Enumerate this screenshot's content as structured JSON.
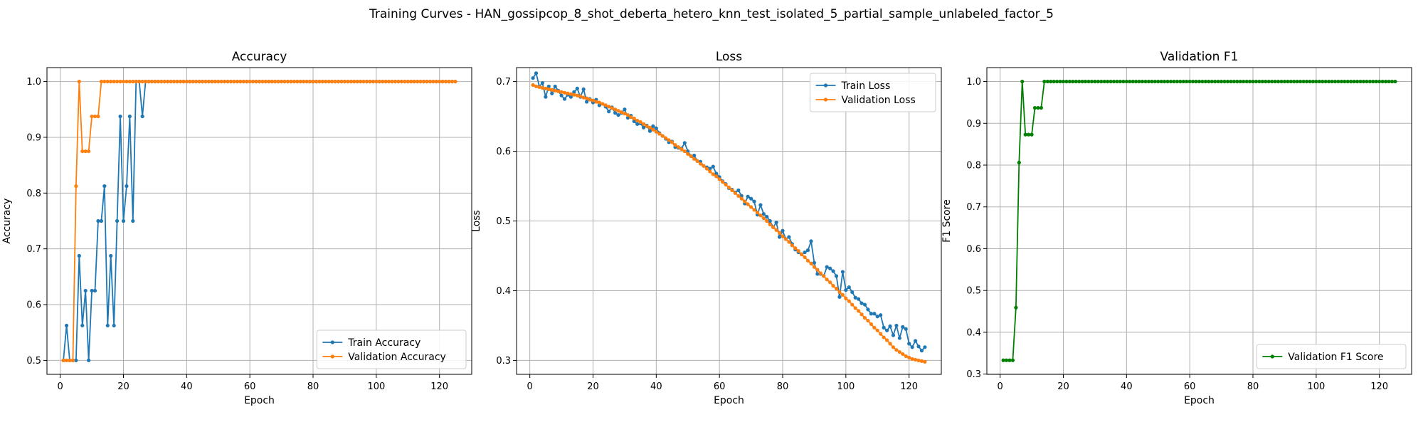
{
  "figure": {
    "suptitle": "Training Curves - HAN_gossipcop_8_shot_deberta_hetero_knn_test_isolated_5_partial_sample_unlabeled_factor_5"
  },
  "colors": {
    "train": "#1f77b4",
    "validation": "#ff7f0e",
    "f1": "#008000",
    "grid": "#b0b0b0"
  },
  "chart_data": [
    {
      "type": "line",
      "title": "Accuracy",
      "xlabel": "Epoch",
      "ylabel": "Accuracy",
      "xlim": [
        -4.2,
        130.2
      ],
      "ylim": [
        0.475,
        1.025
      ],
      "xticks": [
        0,
        20,
        40,
        60,
        80,
        100,
        120
      ],
      "yticks": [
        0.5,
        0.6,
        0.7,
        0.8,
        0.9,
        1.0
      ],
      "grid": true,
      "legend_position": "lower-right",
      "series": [
        {
          "name": "Train Accuracy",
          "color": "#1f77b4",
          "x_start": 1,
          "values": [
            0.5,
            0.5625,
            0.5,
            0.5,
            0.5,
            0.6875,
            0.5625,
            0.625,
            0.5,
            0.625,
            0.625,
            0.75,
            0.75,
            0.8125,
            0.5625,
            0.6875,
            0.5625,
            0.75,
            0.9375,
            0.75,
            0.8125,
            0.9375,
            0.75,
            1.0,
            1.0,
            0.9375,
            1.0,
            1.0,
            1.0,
            1.0,
            1.0,
            1.0,
            1.0,
            1.0,
            1.0,
            1.0,
            1.0,
            1.0,
            1.0,
            1.0,
            1.0,
            1.0,
            1.0,
            1.0,
            1.0,
            1.0,
            1.0,
            1.0,
            1.0,
            1.0,
            1.0,
            1.0,
            1.0,
            1.0,
            1.0,
            1.0,
            1.0,
            1.0,
            1.0,
            1.0,
            1.0,
            1.0,
            1.0,
            1.0,
            1.0,
            1.0,
            1.0,
            1.0,
            1.0,
            1.0,
            1.0,
            1.0,
            1.0,
            1.0,
            1.0,
            1.0,
            1.0,
            1.0,
            1.0,
            1.0,
            1.0,
            1.0,
            1.0,
            1.0,
            1.0,
            1.0,
            1.0,
            1.0,
            1.0,
            1.0,
            1.0,
            1.0,
            1.0,
            1.0,
            1.0,
            1.0,
            1.0,
            1.0,
            1.0,
            1.0,
            1.0,
            1.0,
            1.0,
            1.0,
            1.0,
            1.0,
            1.0,
            1.0,
            1.0,
            1.0,
            1.0,
            1.0,
            1.0,
            1.0,
            1.0,
            1.0,
            1.0,
            1.0,
            1.0,
            1.0,
            1.0,
            1.0,
            1.0,
            1.0,
            1.0
          ]
        },
        {
          "name": "Validation Accuracy",
          "color": "#ff7f0e",
          "x_start": 1,
          "values": [
            0.5,
            0.5,
            0.5,
            0.5,
            0.8125,
            1.0,
            0.875,
            0.875,
            0.875,
            0.9375,
            0.9375,
            0.9375,
            1.0,
            1.0,
            1.0,
            1.0,
            1.0,
            1.0,
            1.0,
            1.0,
            1.0,
            1.0,
            1.0,
            1.0,
            1.0,
            1.0,
            1.0,
            1.0,
            1.0,
            1.0,
            1.0,
            1.0,
            1.0,
            1.0,
            1.0,
            1.0,
            1.0,
            1.0,
            1.0,
            1.0,
            1.0,
            1.0,
            1.0,
            1.0,
            1.0,
            1.0,
            1.0,
            1.0,
            1.0,
            1.0,
            1.0,
            1.0,
            1.0,
            1.0,
            1.0,
            1.0,
            1.0,
            1.0,
            1.0,
            1.0,
            1.0,
            1.0,
            1.0,
            1.0,
            1.0,
            1.0,
            1.0,
            1.0,
            1.0,
            1.0,
            1.0,
            1.0,
            1.0,
            1.0,
            1.0,
            1.0,
            1.0,
            1.0,
            1.0,
            1.0,
            1.0,
            1.0,
            1.0,
            1.0,
            1.0,
            1.0,
            1.0,
            1.0,
            1.0,
            1.0,
            1.0,
            1.0,
            1.0,
            1.0,
            1.0,
            1.0,
            1.0,
            1.0,
            1.0,
            1.0,
            1.0,
            1.0,
            1.0,
            1.0,
            1.0,
            1.0,
            1.0,
            1.0,
            1.0,
            1.0,
            1.0,
            1.0,
            1.0,
            1.0,
            1.0,
            1.0,
            1.0,
            1.0,
            1.0,
            1.0,
            1.0,
            1.0,
            1.0,
            1.0,
            1.0
          ]
        }
      ]
    },
    {
      "type": "line",
      "title": "Loss",
      "xlabel": "Epoch",
      "ylabel": "Loss",
      "xlim": [
        -4.2,
        130.2
      ],
      "ylim": [
        0.28,
        0.72
      ],
      "xticks": [
        0,
        20,
        40,
        60,
        80,
        100,
        120
      ],
      "yticks": [
        0.3,
        0.4,
        0.5,
        0.6,
        0.7
      ],
      "grid": true,
      "legend_position": "upper-right",
      "series": [
        {
          "name": "Train Loss",
          "color": "#1f77b4",
          "x_start": 1,
          "values": [
            0.705,
            0.712,
            0.693,
            0.698,
            0.678,
            0.693,
            0.683,
            0.693,
            0.687,
            0.68,
            0.675,
            0.681,
            0.678,
            0.685,
            0.69,
            0.678,
            0.689,
            0.671,
            0.675,
            0.67,
            0.674,
            0.666,
            0.668,
            0.664,
            0.657,
            0.663,
            0.655,
            0.652,
            0.655,
            0.66,
            0.648,
            0.651,
            0.643,
            0.639,
            0.64,
            0.634,
            0.637,
            0.629,
            0.636,
            0.633,
            0.626,
            0.622,
            0.618,
            0.613,
            0.614,
            0.606,
            0.605,
            0.604,
            0.612,
            0.6,
            0.593,
            0.594,
            0.586,
            0.585,
            0.579,
            0.577,
            0.575,
            0.578,
            0.568,
            0.563,
            0.557,
            0.553,
            0.547,
            0.545,
            0.541,
            0.544,
            0.536,
            0.525,
            0.535,
            0.532,
            0.528,
            0.509,
            0.523,
            0.51,
            0.506,
            0.5,
            0.491,
            0.498,
            0.477,
            0.486,
            0.474,
            0.477,
            0.467,
            0.459,
            0.455,
            0.452,
            0.455,
            0.458,
            0.471,
            0.44,
            0.424,
            0.424,
            0.421,
            0.434,
            0.432,
            0.428,
            0.421,
            0.391,
            0.427,
            0.401,
            0.405,
            0.398,
            0.39,
            0.388,
            0.382,
            0.38,
            0.373,
            0.367,
            0.367,
            0.363,
            0.365,
            0.347,
            0.343,
            0.349,
            0.336,
            0.35,
            0.332,
            0.348,
            0.345,
            0.324,
            0.319,
            0.328,
            0.32,
            0.314,
            0.319
          ]
        },
        {
          "name": "Validation Loss",
          "color": "#ff7f0e",
          "x_start": 1,
          "values": [
            0.695,
            0.693,
            0.692,
            0.691,
            0.69,
            0.689,
            0.688,
            0.687,
            0.686,
            0.685,
            0.684,
            0.683,
            0.682,
            0.681,
            0.68,
            0.679,
            0.677,
            0.676,
            0.674,
            0.673,
            0.671,
            0.67,
            0.668,
            0.666,
            0.664,
            0.662,
            0.66,
            0.658,
            0.656,
            0.654,
            0.652,
            0.649,
            0.647,
            0.644,
            0.642,
            0.639,
            0.636,
            0.634,
            0.631,
            0.628,
            0.625,
            0.622,
            0.619,
            0.616,
            0.613,
            0.609,
            0.606,
            0.603,
            0.6,
            0.596,
            0.593,
            0.589,
            0.586,
            0.582,
            0.579,
            0.575,
            0.571,
            0.567,
            0.564,
            0.56,
            0.556,
            0.552,
            0.548,
            0.544,
            0.54,
            0.536,
            0.532,
            0.528,
            0.524,
            0.52,
            0.516,
            0.512,
            0.508,
            0.504,
            0.5,
            0.495,
            0.491,
            0.487,
            0.483,
            0.478,
            0.474,
            0.47,
            0.465,
            0.461,
            0.457,
            0.452,
            0.448,
            0.443,
            0.439,
            0.434,
            0.43,
            0.425,
            0.421,
            0.416,
            0.412,
            0.407,
            0.403,
            0.398,
            0.394,
            0.389,
            0.385,
            0.38,
            0.375,
            0.371,
            0.366,
            0.361,
            0.357,
            0.352,
            0.347,
            0.343,
            0.338,
            0.333,
            0.329,
            0.324,
            0.319,
            0.315,
            0.312,
            0.309,
            0.306,
            0.304,
            0.302,
            0.301,
            0.3,
            0.299,
            0.298
          ]
        }
      ]
    },
    {
      "type": "line",
      "title": "Validation F1",
      "xlabel": "Epoch",
      "ylabel": "F1 Score",
      "xlim": [
        -4.2,
        130.2
      ],
      "ylim": [
        0.2994,
        1.0333
      ],
      "xticks": [
        0,
        20,
        40,
        60,
        80,
        100,
        120
      ],
      "yticks": [
        0.3,
        0.4,
        0.5,
        0.6,
        0.7,
        0.8,
        0.9,
        1.0
      ],
      "grid": true,
      "legend_position": "lower-right",
      "series": [
        {
          "name": "Validation F1 Score",
          "color": "#008000",
          "x_start": 1,
          "values": [
            0.333,
            0.333,
            0.333,
            0.333,
            0.459,
            0.806,
            1.0,
            0.873,
            0.873,
            0.873,
            0.937,
            0.937,
            0.937,
            1.0,
            1.0,
            1.0,
            1.0,
            1.0,
            1.0,
            1.0,
            1.0,
            1.0,
            1.0,
            1.0,
            1.0,
            1.0,
            1.0,
            1.0,
            1.0,
            1.0,
            1.0,
            1.0,
            1.0,
            1.0,
            1.0,
            1.0,
            1.0,
            1.0,
            1.0,
            1.0,
            1.0,
            1.0,
            1.0,
            1.0,
            1.0,
            1.0,
            1.0,
            1.0,
            1.0,
            1.0,
            1.0,
            1.0,
            1.0,
            1.0,
            1.0,
            1.0,
            1.0,
            1.0,
            1.0,
            1.0,
            1.0,
            1.0,
            1.0,
            1.0,
            1.0,
            1.0,
            1.0,
            1.0,
            1.0,
            1.0,
            1.0,
            1.0,
            1.0,
            1.0,
            1.0,
            1.0,
            1.0,
            1.0,
            1.0,
            1.0,
            1.0,
            1.0,
            1.0,
            1.0,
            1.0,
            1.0,
            1.0,
            1.0,
            1.0,
            1.0,
            1.0,
            1.0,
            1.0,
            1.0,
            1.0,
            1.0,
            1.0,
            1.0,
            1.0,
            1.0,
            1.0,
            1.0,
            1.0,
            1.0,
            1.0,
            1.0,
            1.0,
            1.0,
            1.0,
            1.0,
            1.0,
            1.0,
            1.0,
            1.0,
            1.0,
            1.0,
            1.0,
            1.0,
            1.0,
            1.0,
            1.0,
            1.0,
            1.0,
            1.0,
            1.0
          ]
        }
      ]
    }
  ]
}
